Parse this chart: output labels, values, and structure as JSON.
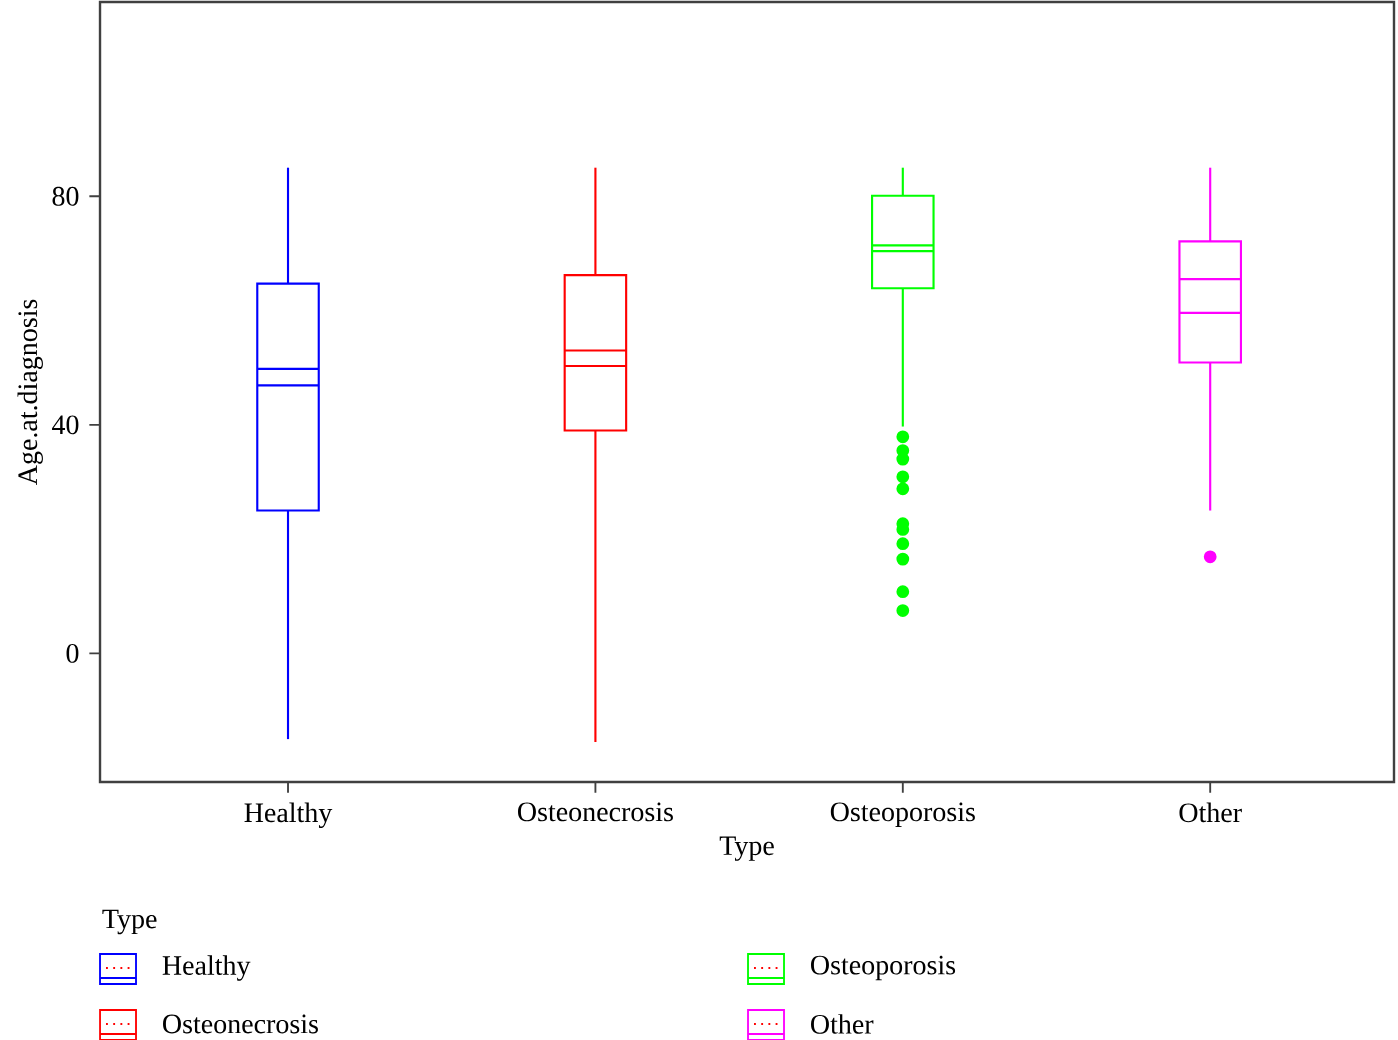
{
  "chart_data": {
    "type": "box",
    "xlabel": "Type",
    "ylabel": "Age.at.diagnosis",
    "legend_title": "Type",
    "legend": "bottom",
    "categories": [
      "Healthy",
      "Osteonecrosis",
      "Osteoporosis",
      "Other"
    ],
    "ylim": [
      -22.5,
      114
    ],
    "yticks": [
      0,
      40,
      80
    ],
    "grid": false,
    "series": [
      {
        "name": "Healthy",
        "color": "#0000ff",
        "boxes": [
          {
            "low": -15,
            "q1": 25,
            "median": 49.8,
            "q3": 64.7,
            "high": 85,
            "mean": 46.9
          },
          null,
          null,
          null
        ]
      },
      {
        "name": "Osteonecrosis",
        "color": "#ff0000",
        "boxes": [
          null,
          {
            "low": -15.5,
            "q1": 39,
            "median": 53,
            "q3": 66.2,
            "high": 85,
            "mean": 50.3
          },
          null,
          null
        ]
      },
      {
        "name": "Osteoporosis",
        "color": "#00ff00",
        "boxes": [
          null,
          null,
          {
            "low": 39.7,
            "q1": 63.9,
            "median": 71.4,
            "q3": 80.1,
            "high": 85,
            "mean": 70.4,
            "outliers": [
              37.9,
              35.5,
              34,
              30.9,
              28.8,
              22.7,
              21.7,
              19.2,
              16.5,
              10.8,
              7.5
            ]
          },
          null
        ]
      },
      {
        "name": "Other",
        "color": "#ff00ff",
        "boxes": [
          null,
          null,
          null,
          {
            "low": 25,
            "q1": 50.9,
            "median": 65.5,
            "q3": 72.1,
            "high": 85,
            "mean": 59.6,
            "outliers": [
              16.9
            ]
          }
        ]
      }
    ]
  }
}
